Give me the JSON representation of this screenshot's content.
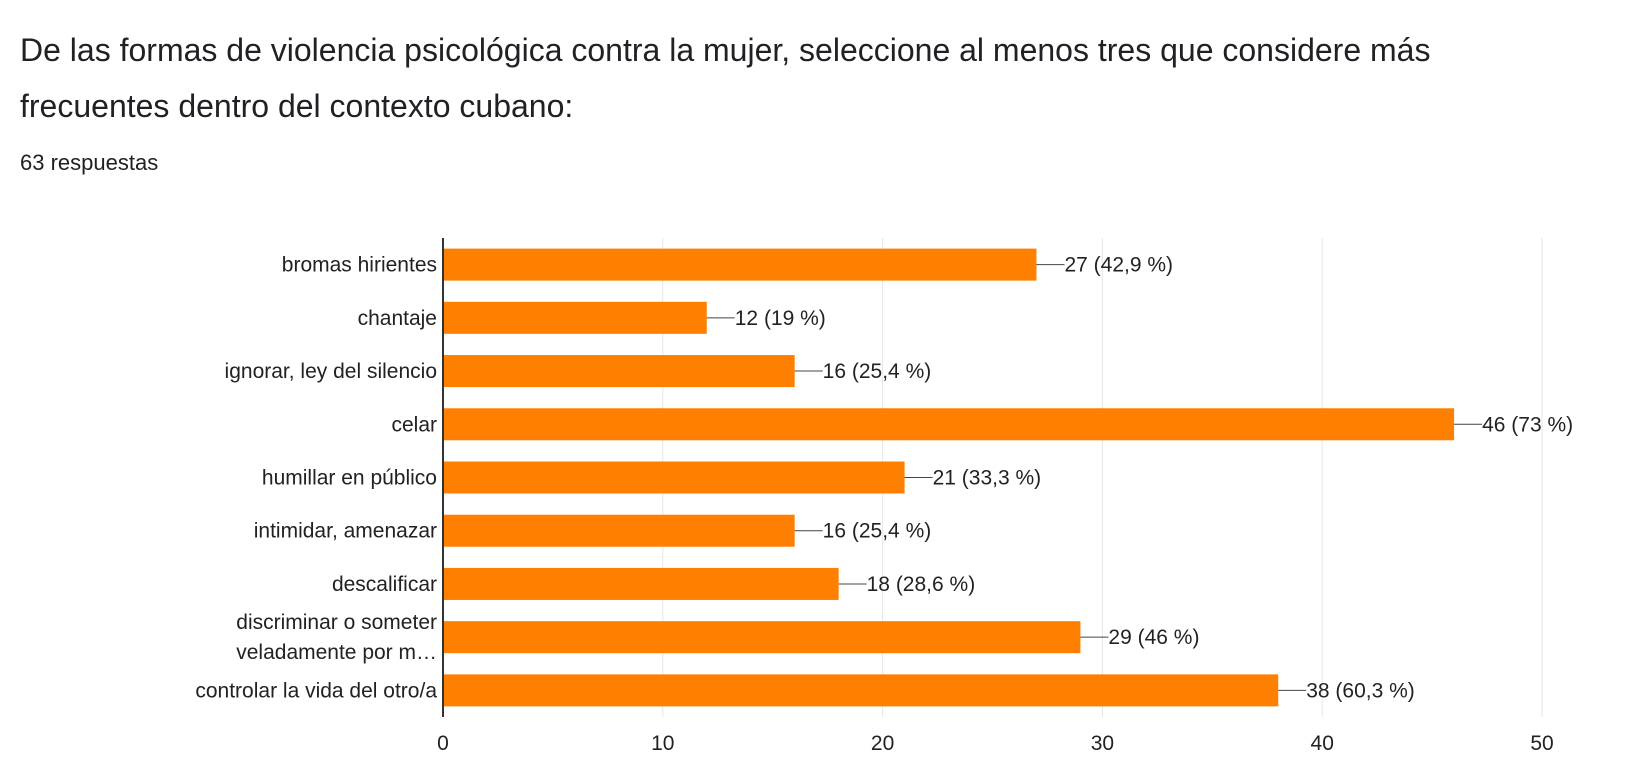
{
  "question": {
    "title": "De las formas de violencia psicológica contra la mujer, seleccione al menos tres que considere más frecuentes dentro del contexto cubano:",
    "responses": "63 respuestas"
  },
  "colors": {
    "bar": "#ff7f00",
    "grid": "#e6e6e6",
    "axis": "#333333",
    "text": "#222222"
  },
  "chart_data": {
    "type": "bar",
    "orientation": "horizontal",
    "categories": [
      "bromas hirientes",
      "chantaje",
      "ignorar, ley del silencio",
      "celar",
      "humillar en público",
      "intimidar, amenazar",
      "descalificar",
      "discriminar o someter veladamente por m…",
      "controlar la vida del otro/a"
    ],
    "category_lines": [
      [
        "bromas hirientes"
      ],
      [
        "chantaje"
      ],
      [
        "ignorar, ley del silencio"
      ],
      [
        "celar"
      ],
      [
        "humillar en público"
      ],
      [
        "intimidar, amenazar"
      ],
      [
        "descalificar"
      ],
      [
        "discriminar o someter",
        "veladamente por m…"
      ],
      [
        "controlar la vida del otro/a"
      ]
    ],
    "values": [
      27,
      12,
      16,
      46,
      21,
      16,
      18,
      29,
      38
    ],
    "data_labels": [
      "27 (42,9 %)",
      "12 (19 %)",
      "16 (25,4 %)",
      "46 (73 %)",
      "21 (33,3 %)",
      "16 (25,4 %)",
      "18 (28,6 %)",
      "29 (46 %)",
      "38 (60,3 %)"
    ],
    "xlim": [
      0,
      50
    ],
    "xticks": [
      0,
      10,
      20,
      30,
      40,
      50
    ],
    "grid": true,
    "legend": "none"
  }
}
